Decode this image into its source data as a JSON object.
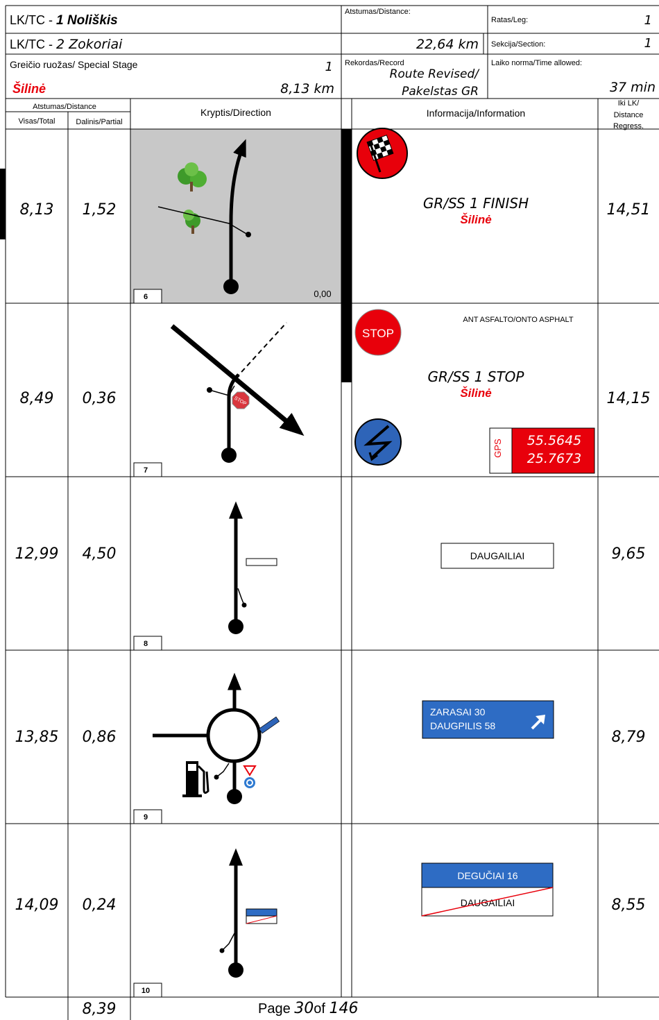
{
  "header": {
    "tc_from_prefix": "LK/TC -",
    "tc_from": "1 Noliškis",
    "tc_to_prefix": "LK/TC -",
    "tc_to": "2 Zokoriai",
    "distance_label": "Atstumas/Distance:",
    "distance": "22,64 km",
    "leg_label": "Ratas/Leg:",
    "leg": "1",
    "section_label": "Sekcija/Section:",
    "section": "1",
    "stage_label": "Greičio ruožas/ Special Stage",
    "stage_number": "1",
    "stage_name": "Šilinė",
    "stage_length": "8,13 km",
    "record_label": "Rekordas/Record",
    "record": [
      "Route Revised/",
      "Pakelstas GR"
    ],
    "time_label": "Laiko norma/Time allowed:",
    "time": "37 min"
  },
  "columns": {
    "distance": "Atstumas/Distance",
    "total": "Visas/Total",
    "partial": "Dalinis/Partial",
    "direction": "Kryptis/Direction",
    "information": "Informacija/Information",
    "regress": [
      "Iki LK/",
      "Distance",
      "Regress."
    ]
  },
  "rows": [
    {
      "total": "8,13",
      "partial": "1,52",
      "number": "6",
      "direction_note": "0,00",
      "info": [
        "GR/SS 1 FINISH",
        "Šilinė"
      ],
      "regress": "14,51"
    },
    {
      "total": "8,49",
      "partial": "0,36",
      "number": "7",
      "direction_sign": "STOP",
      "note": "ANT ASFALTO/ONTO ASPHALT",
      "sign": "STOP",
      "info": [
        "GR/SS 1 STOP",
        "Šilinė"
      ],
      "gps_label": "GPS",
      "gps": [
        "55.5645",
        "25.7673"
      ],
      "regress": "14,15"
    },
    {
      "total": "12,99",
      "partial": "4,50",
      "number": "8",
      "sign": [
        "DAUGAILIAI"
      ],
      "regress": "9,65"
    },
    {
      "total": "13,85",
      "partial": "0,86",
      "number": "9",
      "sign": [
        "ZARASAI 30",
        "DAUGPILIS 58"
      ],
      "regress": "8,79"
    },
    {
      "total": "14,09",
      "partial": "0,24",
      "number": "10",
      "sign": [
        "DEGUČIAI 16",
        "DAUGAILIAI"
      ],
      "regress": "8,55"
    }
  ],
  "footer": {
    "carry": "8,39",
    "page_label": "Page",
    "page": "30",
    "of_label": "of",
    "pages": "146"
  }
}
